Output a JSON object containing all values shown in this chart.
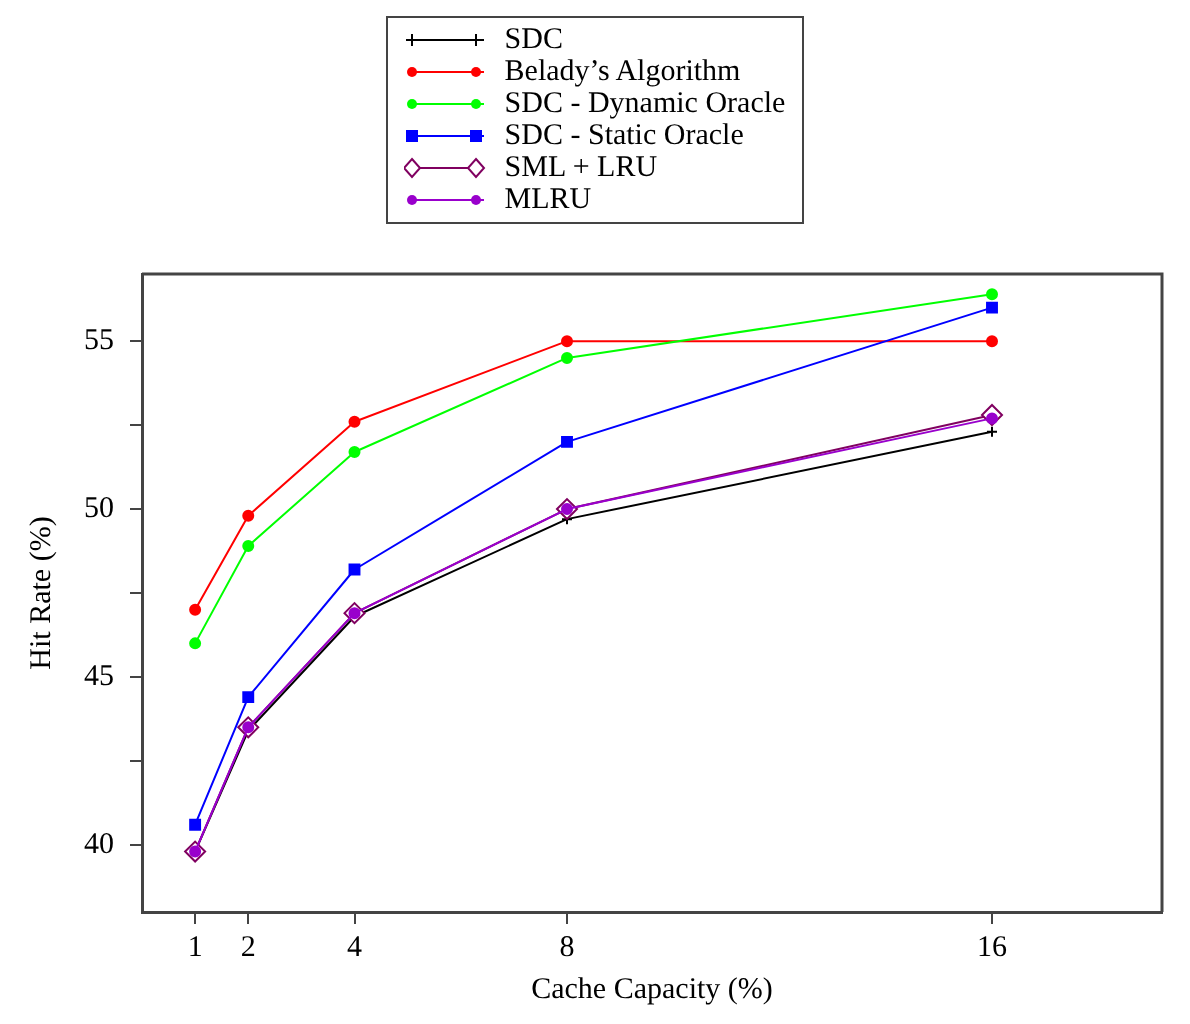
{
  "chart_data": {
    "type": "line",
    "xlabel": "Cache Capacity (%)",
    "ylabel": "Hit Rate (%)",
    "x": [
      1,
      2,
      4,
      8,
      16
    ],
    "xlim": [
      0,
      19.2
    ],
    "xticks": [
      1,
      2,
      4,
      8,
      16
    ],
    "ylim": [
      38,
      57
    ],
    "yticks": [
      40,
      {
        "value": 42.5,
        "label": null
      },
      45,
      {
        "value": 47.5,
        "label": null
      },
      50,
      {
        "value": 52.5,
        "label": null
      },
      55
    ],
    "grid": false,
    "legend": "top",
    "line_style": "solid",
    "series": [
      {
        "name": "SDC",
        "color": "#000000",
        "marker": "cross",
        "values": [
          39.8,
          43.4,
          46.8,
          49.7,
          52.3
        ]
      },
      {
        "name": "Belady’s Algorithm",
        "color": "#ff0000",
        "marker": "circle",
        "values": [
          47.0,
          49.8,
          52.6,
          55.0,
          55.0
        ]
      },
      {
        "name": "SDC - Dynamic Oracle",
        "color": "#00ff00",
        "marker": "circle",
        "values": [
          46.0,
          48.9,
          51.7,
          54.5,
          56.4
        ]
      },
      {
        "name": "SDC - Static Oracle",
        "color": "#0000ff",
        "marker": "square",
        "values": [
          40.6,
          44.4,
          48.2,
          52.0,
          56.0
        ]
      },
      {
        "name": "SML + LRU",
        "color": "#800060",
        "marker": "diamond",
        "values": [
          39.8,
          43.5,
          46.9,
          50.0,
          52.8
        ]
      },
      {
        "name": "MLRU",
        "color": "#9900cc",
        "marker": "circle",
        "values": [
          39.8,
          43.5,
          46.9,
          50.0,
          52.7
        ]
      }
    ]
  }
}
